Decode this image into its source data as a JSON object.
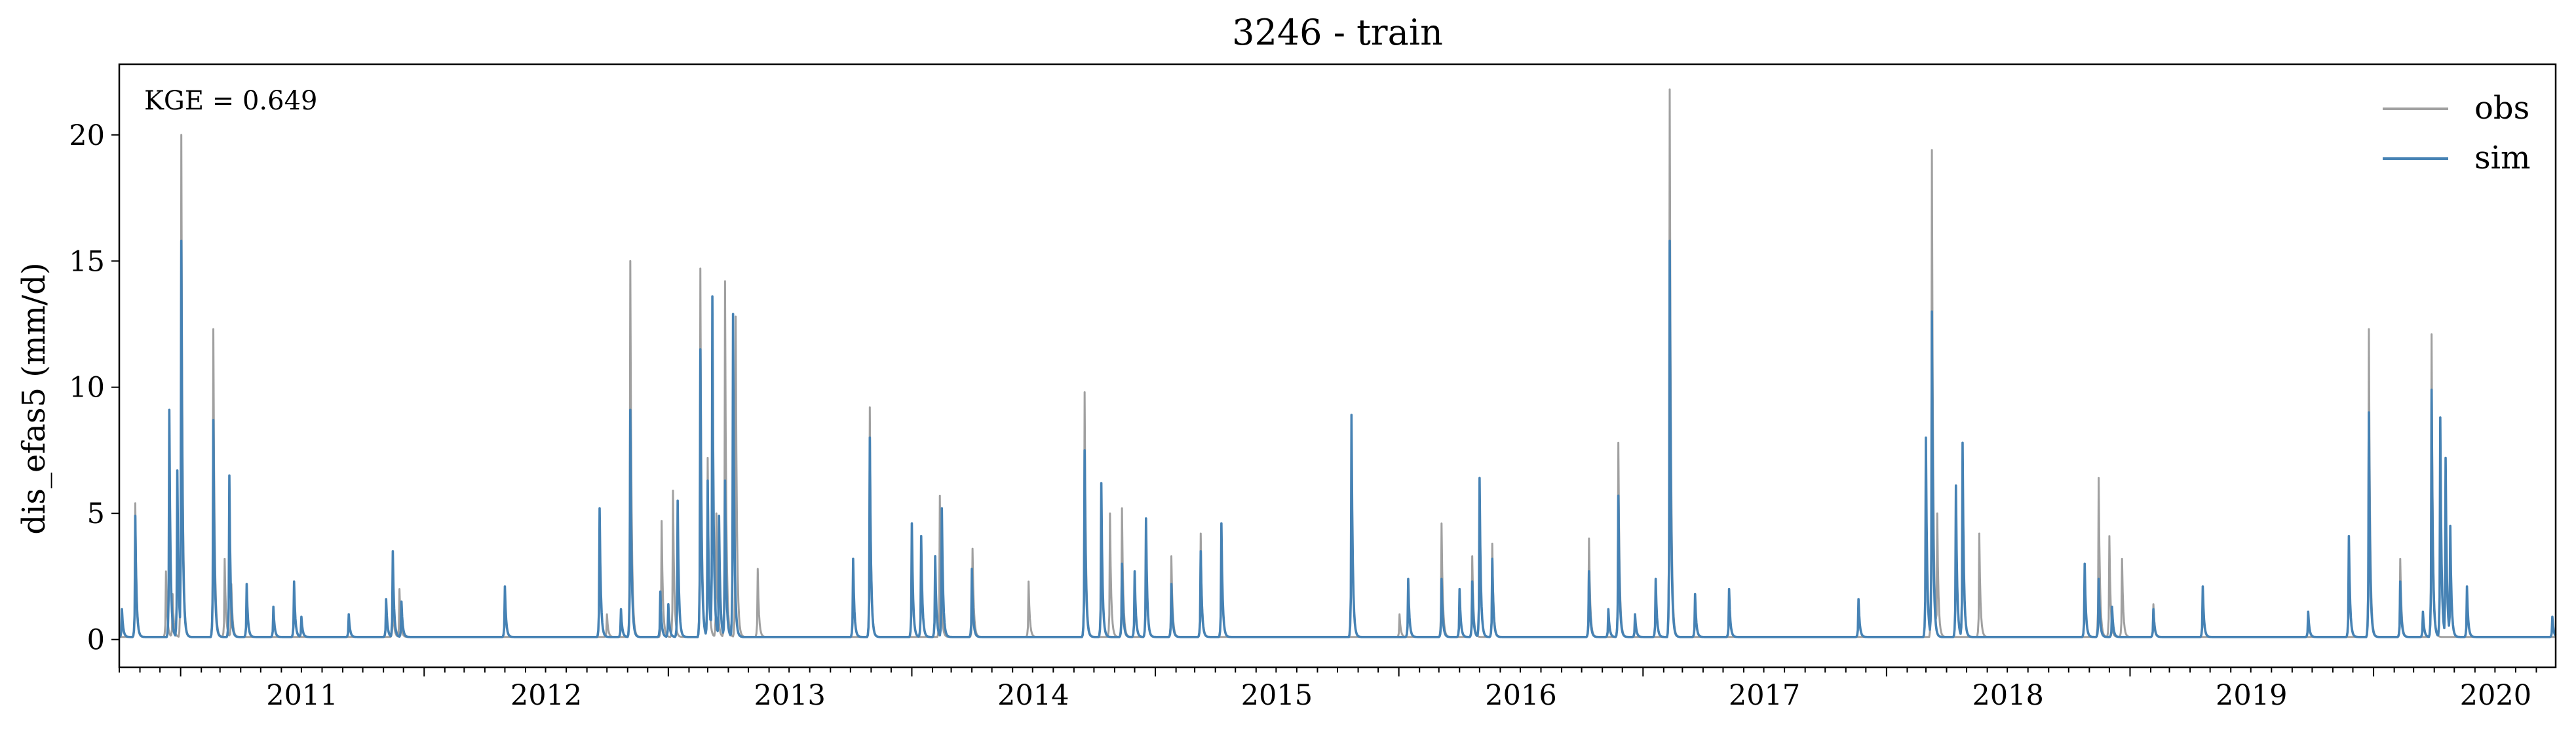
{
  "chart_data": {
    "type": "line",
    "title": "3246 - train",
    "xlabel": "",
    "ylabel": "dis_efas5 (mm/d)",
    "annotation": "KGE = 0.649",
    "legend_position": "top-right",
    "grid": false,
    "x_range": [
      "2010-10-01",
      "2020-09-30"
    ],
    "ylim": [
      -1.1,
      22.8
    ],
    "x_ticks": [
      "2011",
      "2012",
      "2013",
      "2014",
      "2015",
      "2016",
      "2017",
      "2018",
      "2019",
      "2020"
    ],
    "y_ticks": [
      0,
      5,
      10,
      15,
      20
    ],
    "baseline": 0.1,
    "series": [
      {
        "name": "obs",
        "color": "#a0a0a0",
        "peaks": [
          [
            "2010-10-25",
            5.4
          ],
          [
            "2010-12-10",
            2.7
          ],
          [
            "2010-12-20",
            1.8
          ],
          [
            "2011-01-02",
            20.0
          ],
          [
            "2011-02-19",
            12.3
          ],
          [
            "2011-03-08",
            3.2
          ],
          [
            "2011-03-18",
            2.2
          ],
          [
            "2011-11-15",
            1.5
          ],
          [
            "2011-11-25",
            2.0
          ],
          [
            "2012-10-01",
            1.0
          ],
          [
            "2012-11-05",
            15.0
          ],
          [
            "2012-12-22",
            4.7
          ],
          [
            "2013-01-08",
            5.9
          ],
          [
            "2013-02-18",
            14.7
          ],
          [
            "2013-03-01",
            7.2
          ],
          [
            "2013-03-14",
            5.0
          ],
          [
            "2013-03-27",
            14.2
          ],
          [
            "2013-04-12",
            12.8
          ],
          [
            "2013-05-15",
            2.8
          ],
          [
            "2013-10-30",
            9.2
          ],
          [
            "2014-02-12",
            5.7
          ],
          [
            "2014-04-02",
            3.6
          ],
          [
            "2014-06-25",
            2.3
          ],
          [
            "2014-09-17",
            9.8
          ],
          [
            "2014-10-25",
            5.0
          ],
          [
            "2014-11-12",
            5.2
          ],
          [
            "2014-12-18",
            4.5
          ],
          [
            "2015-01-25",
            3.3
          ],
          [
            "2015-03-10",
            4.2
          ],
          [
            "2016-01-02",
            1.0
          ],
          [
            "2016-03-05",
            4.6
          ],
          [
            "2016-04-20",
            3.3
          ],
          [
            "2016-05-20",
            3.8
          ],
          [
            "2016-10-12",
            4.0
          ],
          [
            "2016-11-25",
            7.8
          ],
          [
            "2017-02-10",
            21.8
          ],
          [
            "2018-03-10",
            19.4
          ],
          [
            "2018-03-18",
            5.0
          ],
          [
            "2018-05-20",
            4.2
          ],
          [
            "2018-11-15",
            6.4
          ],
          [
            "2018-12-01",
            4.1
          ],
          [
            "2018-12-20",
            3.2
          ],
          [
            "2019-02-05",
            1.4
          ],
          [
            "2019-12-25",
            12.3
          ],
          [
            "2020-02-10",
            3.2
          ],
          [
            "2020-03-28",
            12.1
          ]
        ]
      },
      {
        "name": "sim",
        "color": "#4682b4",
        "peaks": [
          [
            "2010-10-05",
            1.2
          ],
          [
            "2010-10-25",
            4.9
          ],
          [
            "2010-12-15",
            9.1
          ],
          [
            "2010-12-27",
            6.7
          ],
          [
            "2011-01-02",
            15.8
          ],
          [
            "2011-02-19",
            8.7
          ],
          [
            "2011-03-15",
            6.5
          ],
          [
            "2011-04-10",
            2.2
          ],
          [
            "2011-05-20",
            1.3
          ],
          [
            "2011-06-20",
            2.3
          ],
          [
            "2011-07-01",
            0.9
          ],
          [
            "2011-09-10",
            1.0
          ],
          [
            "2011-11-05",
            1.6
          ],
          [
            "2011-11-15",
            3.5
          ],
          [
            "2011-11-28",
            1.5
          ],
          [
            "2012-05-01",
            2.1
          ],
          [
            "2012-09-20",
            5.2
          ],
          [
            "2012-10-22",
            1.2
          ],
          [
            "2012-11-05",
            9.1
          ],
          [
            "2012-12-20",
            1.9
          ],
          [
            "2013-01-01",
            1.4
          ],
          [
            "2013-01-15",
            5.5
          ],
          [
            "2013-02-18",
            11.5
          ],
          [
            "2013-03-01",
            6.3
          ],
          [
            "2013-03-08",
            13.6
          ],
          [
            "2013-03-18",
            4.9
          ],
          [
            "2013-03-27",
            6.3
          ],
          [
            "2013-04-08",
            12.9
          ],
          [
            "2013-10-05",
            3.2
          ],
          [
            "2013-10-30",
            8.0
          ],
          [
            "2014-01-01",
            4.6
          ],
          [
            "2014-01-15",
            4.1
          ],
          [
            "2014-02-05",
            3.3
          ],
          [
            "2014-02-15",
            5.2
          ],
          [
            "2014-04-01",
            2.8
          ],
          [
            "2014-09-17",
            7.5
          ],
          [
            "2014-10-12",
            6.2
          ],
          [
            "2014-11-12",
            3.0
          ],
          [
            "2014-12-01",
            2.7
          ],
          [
            "2014-12-18",
            4.8
          ],
          [
            "2015-01-25",
            2.2
          ],
          [
            "2015-03-10",
            3.5
          ],
          [
            "2015-04-10",
            4.6
          ],
          [
            "2015-10-22",
            8.9
          ],
          [
            "2016-01-15",
            2.4
          ],
          [
            "2016-03-05",
            2.4
          ],
          [
            "2016-04-01",
            2.0
          ],
          [
            "2016-04-20",
            2.3
          ],
          [
            "2016-05-01",
            6.4
          ],
          [
            "2016-05-20",
            3.2
          ],
          [
            "2016-10-12",
            2.7
          ],
          [
            "2016-11-10",
            1.2
          ],
          [
            "2016-11-25",
            5.7
          ],
          [
            "2016-12-20",
            1.0
          ],
          [
            "2017-01-20",
            2.4
          ],
          [
            "2017-02-10",
            15.8
          ],
          [
            "2017-03-20",
            1.8
          ],
          [
            "2017-05-10",
            2.0
          ],
          [
            "2017-11-20",
            1.6
          ],
          [
            "2018-03-01",
            8.0
          ],
          [
            "2018-03-10",
            13.0
          ],
          [
            "2018-04-15",
            6.1
          ],
          [
            "2018-04-25",
            7.8
          ],
          [
            "2018-10-25",
            3.0
          ],
          [
            "2018-11-15",
            2.4
          ],
          [
            "2018-12-05",
            1.3
          ],
          [
            "2019-02-05",
            1.2
          ],
          [
            "2019-04-20",
            2.1
          ],
          [
            "2019-09-25",
            1.1
          ],
          [
            "2019-11-25",
            4.1
          ],
          [
            "2019-12-25",
            9.0
          ],
          [
            "2020-02-10",
            2.3
          ],
          [
            "2020-03-15",
            1.1
          ],
          [
            "2020-03-28",
            9.9
          ],
          [
            "2020-04-10",
            8.8
          ],
          [
            "2020-04-18",
            7.2
          ],
          [
            "2020-04-25",
            4.5
          ],
          [
            "2020-05-20",
            2.1
          ],
          [
            "2020-09-25",
            0.9
          ]
        ]
      }
    ]
  }
}
